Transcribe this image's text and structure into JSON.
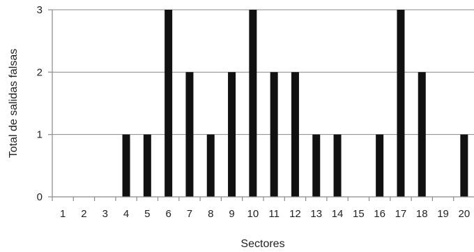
{
  "chart_data": {
    "type": "bar",
    "title": "",
    "xlabel": "Sectores",
    "ylabel": "Total de salidas falsas",
    "categories": [
      "1",
      "2",
      "3",
      "4",
      "5",
      "6",
      "7",
      "8",
      "9",
      "10",
      "11",
      "12",
      "13",
      "14",
      "15",
      "16",
      "17",
      "18",
      "19",
      "20"
    ],
    "values": [
      0,
      0,
      0,
      1,
      1,
      3,
      2,
      1,
      2,
      3,
      2,
      2,
      1,
      1,
      0,
      1,
      3,
      2,
      0,
      1
    ],
    "ylim": [
      0,
      3
    ],
    "yticks": [
      "0",
      "1",
      "2",
      "3"
    ],
    "grid": "horizontal",
    "legend": "none",
    "bar_color": "#111111",
    "grid_color": "#8a8a8a"
  }
}
